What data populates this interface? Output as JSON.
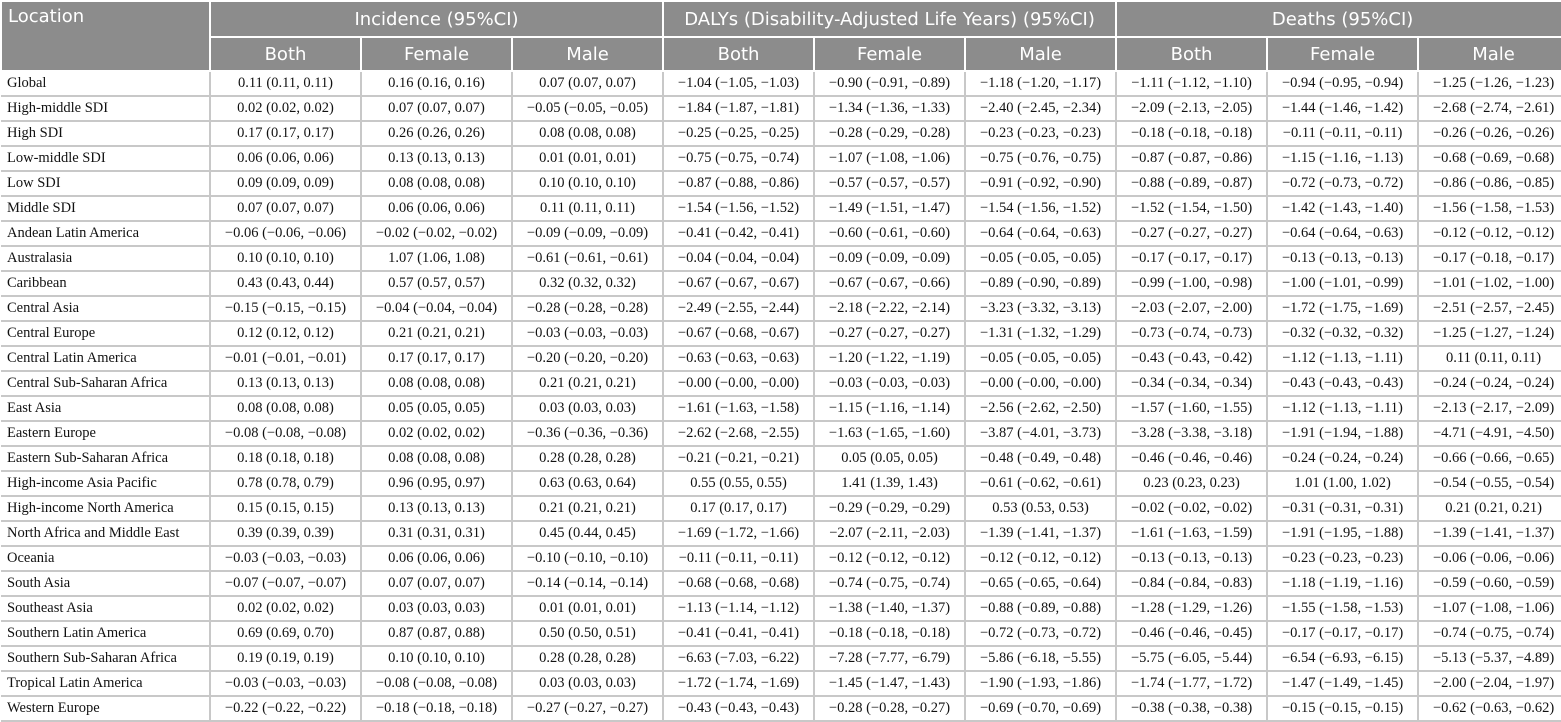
{
  "header": {
    "location": "Location",
    "groups": [
      "Incidence (95%CI)",
      "DALYs (Disability-Adjusted Life Years) (95%CI)",
      "Deaths (95%CI)"
    ],
    "subheaders": [
      "Both",
      "Female",
      "Male",
      "Both",
      "Female",
      "Male",
      "Both",
      "Female",
      "Male"
    ]
  },
  "rows": [
    [
      "Global",
      "0.11 (0.11, 0.11)",
      "0.16 (0.16, 0.16)",
      "0.07 (0.07, 0.07)",
      "−1.04 (−1.05, −1.03)",
      "−0.90 (−0.91, −0.89)",
      "−1.18 (−1.20, −1.17)",
      "−1.11 (−1.12, −1.10)",
      "−0.94 (−0.95, −0.94)",
      "−1.25 (−1.26, −1.23)"
    ],
    [
      "High-middle SDI",
      "0.02 (0.02, 0.02)",
      "0.07 (0.07, 0.07)",
      "−0.05 (−0.05, −0.05)",
      "−1.84 (−1.87, −1.81)",
      "−1.34 (−1.36, −1.33)",
      "−2.40 (−2.45, −2.34)",
      "−2.09 (−2.13, −2.05)",
      "−1.44 (−1.46, −1.42)",
      "−2.68 (−2.74, −2.61)"
    ],
    [
      "High SDI",
      "0.17 (0.17, 0.17)",
      "0.26 (0.26, 0.26)",
      "0.08 (0.08, 0.08)",
      "−0.25 (−0.25, −0.25)",
      "−0.28 (−0.29, −0.28)",
      "−0.23 (−0.23, −0.23)",
      "−0.18 (−0.18, −0.18)",
      "−0.11 (−0.11, −0.11)",
      "−0.26 (−0.26, −0.26)"
    ],
    [
      "Low-middle SDI",
      "0.06 (0.06, 0.06)",
      "0.13 (0.13, 0.13)",
      "0.01 (0.01, 0.01)",
      "−0.75 (−0.75, −0.74)",
      "−1.07 (−1.08, −1.06)",
      "−0.75 (−0.76, −0.75)",
      "−0.87 (−0.87, −0.86)",
      "−1.15 (−1.16, −1.13)",
      "−0.68 (−0.69, −0.68)"
    ],
    [
      "Low SDI",
      "0.09 (0.09, 0.09)",
      "0.08 (0.08, 0.08)",
      "0.10 (0.10, 0.10)",
      "−0.87 (−0.88, −0.86)",
      "−0.57 (−0.57, −0.57)",
      "−0.91 (−0.92, −0.90)",
      "−0.88 (−0.89, −0.87)",
      "−0.72 (−0.73, −0.72)",
      "−0.86 (−0.86, −0.85)"
    ],
    [
      "Middle SDI",
      "0.07 (0.07, 0.07)",
      "0.06 (0.06, 0.06)",
      "0.11 (0.11, 0.11)",
      "−1.54 (−1.56, −1.52)",
      "−1.49 (−1.51, −1.47)",
      "−1.54 (−1.56, −1.52)",
      "−1.52 (−1.54, −1.50)",
      "−1.42 (−1.43, −1.40)",
      "−1.56 (−1.58, −1.53)"
    ],
    [
      "Andean Latin America",
      "−0.06 (−0.06, −0.06)",
      "−0.02 (−0.02, −0.02)",
      "−0.09 (−0.09, −0.09)",
      "−0.41 (−0.42, −0.41)",
      "−0.60 (−0.61, −0.60)",
      "−0.64 (−0.64, −0.63)",
      "−0.27 (−0.27, −0.27)",
      "−0.64 (−0.64, −0.63)",
      "−0.12 (−0.12, −0.12)"
    ],
    [
      "Australasia",
      "0.10 (0.10, 0.10)",
      "1.07 (1.06, 1.08)",
      "−0.61 (−0.61, −0.61)",
      "−0.04 (−0.04, −0.04)",
      "−0.09 (−0.09, −0.09)",
      "−0.05 (−0.05, −0.05)",
      "−0.17 (−0.17, −0.17)",
      "−0.13 (−0.13, −0.13)",
      "−0.17 (−0.18, −0.17)"
    ],
    [
      "Caribbean",
      "0.43 (0.43, 0.44)",
      "0.57 (0.57, 0.57)",
      "0.32 (0.32, 0.32)",
      "−0.67 (−0.67, −0.67)",
      "−0.67 (−0.67, −0.66)",
      "−0.89 (−0.90, −0.89)",
      "−0.99 (−1.00, −0.98)",
      "−1.00 (−1.01, −0.99)",
      "−1.01 (−1.02, −1.00)"
    ],
    [
      "Central Asia",
      "−0.15 (−0.15, −0.15)",
      "−0.04 (−0.04, −0.04)",
      "−0.28 (−0.28, −0.28)",
      "−2.49 (−2.55, −2.44)",
      "−2.18 (−2.22, −2.14)",
      "−3.23 (−3.32, −3.13)",
      "−2.03 (−2.07, −2.00)",
      "−1.72 (−1.75, −1.69)",
      "−2.51 (−2.57, −2.45)"
    ],
    [
      "Central Europe",
      "0.12 (0.12, 0.12)",
      "0.21 (0.21, 0.21)",
      "−0.03 (−0.03, −0.03)",
      "−0.67 (−0.68, −0.67)",
      "−0.27 (−0.27, −0.27)",
      "−1.31 (−1.32, −1.29)",
      "−0.73 (−0.74, −0.73)",
      "−0.32 (−0.32, −0.32)",
      "−1.25 (−1.27, −1.24)"
    ],
    [
      "Central Latin America",
      "−0.01 (−0.01, −0.01)",
      "0.17 (0.17, 0.17)",
      "−0.20 (−0.20, −0.20)",
      "−0.63 (−0.63, −0.63)",
      "−1.20 (−1.22, −1.19)",
      "−0.05 (−0.05, −0.05)",
      "−0.43 (−0.43, −0.42)",
      "−1.12 (−1.13, −1.11)",
      "0.11 (0.11, 0.11)"
    ],
    [
      "Central Sub-Saharan Africa",
      "0.13 (0.13, 0.13)",
      "0.08 (0.08, 0.08)",
      "0.21 (0.21, 0.21)",
      "−0.00 (−0.00, −0.00)",
      "−0.03 (−0.03, −0.03)",
      "−0.00 (−0.00, −0.00)",
      "−0.34 (−0.34, −0.34)",
      "−0.43 (−0.43, −0.43)",
      "−0.24 (−0.24, −0.24)"
    ],
    [
      "East Asia",
      "0.08 (0.08, 0.08)",
      "0.05 (0.05, 0.05)",
      "0.03 (0.03, 0.03)",
      "−1.61 (−1.63, −1.58)",
      "−1.15 (−1.16, −1.14)",
      "−2.56 (−2.62, −2.50)",
      "−1.57 (−1.60, −1.55)",
      "−1.12 (−1.13, −1.11)",
      "−2.13 (−2.17, −2.09)"
    ],
    [
      "Eastern Europe",
      "−0.08 (−0.08, −0.08)",
      "0.02 (0.02, 0.02)",
      "−0.36 (−0.36, −0.36)",
      "−2.62 (−2.68, −2.55)",
      "−1.63 (−1.65, −1.60)",
      "−3.87 (−4.01, −3.73)",
      "−3.28 (−3.38, −3.18)",
      "−1.91 (−1.94, −1.88)",
      "−4.71 (−4.91, −4.50)"
    ],
    [
      "Eastern Sub-Saharan Africa",
      "0.18 (0.18, 0.18)",
      "0.08 (0.08, 0.08)",
      "0.28 (0.28, 0.28)",
      "−0.21 (−0.21, −0.21)",
      "0.05 (0.05, 0.05)",
      "−0.48 (−0.49, −0.48)",
      "−0.46 (−0.46, −0.46)",
      "−0.24 (−0.24, −0.24)",
      "−0.66 (−0.66, −0.65)"
    ],
    [
      "High-income Asia Pacific",
      "0.78 (0.78, 0.79)",
      "0.96 (0.95, 0.97)",
      "0.63 (0.63, 0.64)",
      "0.55 (0.55, 0.55)",
      "1.41 (1.39, 1.43)",
      "−0.61 (−0.62, −0.61)",
      "0.23 (0.23, 0.23)",
      "1.01 (1.00, 1.02)",
      "−0.54 (−0.55, −0.54)"
    ],
    [
      "High-income North America",
      "0.15 (0.15, 0.15)",
      "0.13 (0.13, 0.13)",
      "0.21 (0.21, 0.21)",
      "0.17 (0.17, 0.17)",
      "−0.29 (−0.29, −0.29)",
      "0.53 (0.53, 0.53)",
      "−0.02 (−0.02, −0.02)",
      "−0.31 (−0.31, −0.31)",
      "0.21 (0.21, 0.21)"
    ],
    [
      "North Africa and Middle East",
      "0.39 (0.39, 0.39)",
      "0.31 (0.31, 0.31)",
      "0.45 (0.44, 0.45)",
      "−1.69 (−1.72, −1.66)",
      "−2.07 (−2.11, −2.03)",
      "−1.39 (−1.41, −1.37)",
      "−1.61 (−1.63, −1.59)",
      "−1.91 (−1.95, −1.88)",
      "−1.39 (−1.41, −1.37)"
    ],
    [
      "Oceania",
      "−0.03 (−0.03, −0.03)",
      "0.06 (0.06, 0.06)",
      "−0.10 (−0.10, −0.10)",
      "−0.11 (−0.11, −0.11)",
      "−0.12 (−0.12, −0.12)",
      "−0.12 (−0.12, −0.12)",
      "−0.13 (−0.13, −0.13)",
      "−0.23 (−0.23, −0.23)",
      "−0.06 (−0.06, −0.06)"
    ],
    [
      "South Asia",
      "−0.07 (−0.07, −0.07)",
      "0.07 (0.07, 0.07)",
      "−0.14 (−0.14, −0.14)",
      "−0.68 (−0.68, −0.68)",
      "−0.74 (−0.75, −0.74)",
      "−0.65 (−0.65, −0.64)",
      "−0.84 (−0.84, −0.83)",
      "−1.18 (−1.19, −1.16)",
      "−0.59 (−0.60, −0.59)"
    ],
    [
      "Southeast Asia",
      "0.02 (0.02, 0.02)",
      "0.03 (0.03, 0.03)",
      "0.01 (0.01, 0.01)",
      "−1.13 (−1.14, −1.12)",
      "−1.38 (−1.40, −1.37)",
      "−0.88 (−0.89, −0.88)",
      "−1.28 (−1.29, −1.26)",
      "−1.55 (−1.58, −1.53)",
      "−1.07 (−1.08, −1.06)"
    ],
    [
      "Southern Latin America",
      "0.69 (0.69, 0.70)",
      "0.87 (0.87, 0.88)",
      "0.50 (0.50, 0.51)",
      "−0.41 (−0.41, −0.41)",
      "−0.18 (−0.18, −0.18)",
      "−0.72 (−0.73, −0.72)",
      "−0.46 (−0.46, −0.45)",
      "−0.17 (−0.17, −0.17)",
      "−0.74 (−0.75, −0.74)"
    ],
    [
      "Southern Sub-Saharan Africa",
      "0.19 (0.19, 0.19)",
      "0.10 (0.10, 0.10)",
      "0.28 (0.28, 0.28)",
      "−6.63 (−7.03, −6.22)",
      "−7.28 (−7.77, −6.79)",
      "−5.86 (−6.18, −5.55)",
      "−5.75 (−6.05, −5.44)",
      "−6.54 (−6.93, −6.15)",
      "−5.13 (−5.37, −4.89)"
    ],
    [
      "Tropical Latin America",
      "−0.03 (−0.03, −0.03)",
      "−0.08 (−0.08, −0.08)",
      "0.03 (0.03, 0.03)",
      "−1.72 (−1.74, −1.69)",
      "−1.45 (−1.47, −1.43)",
      "−1.90 (−1.93, −1.86)",
      "−1.74 (−1.77, −1.72)",
      "−1.47 (−1.49, −1.45)",
      "−2.00 (−2.04, −1.97)"
    ],
    [
      "Western Europe",
      "−0.22 (−0.22, −0.22)",
      "−0.18 (−0.18, −0.18)",
      "−0.27 (−0.27, −0.27)",
      "−0.43 (−0.43, −0.43)",
      "−0.28 (−0.28, −0.27)",
      "−0.69 (−0.70, −0.69)",
      "−0.38 (−0.38, −0.38)",
      "−0.15 (−0.15, −0.15)",
      "−0.62 (−0.63, −0.62)"
    ]
  ]
}
